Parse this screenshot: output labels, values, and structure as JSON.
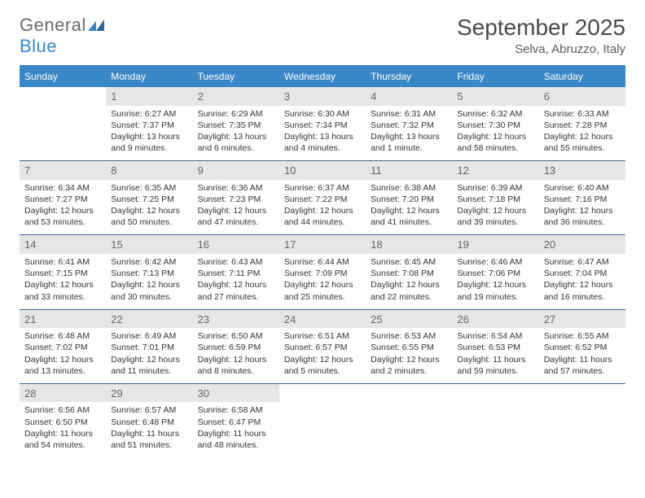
{
  "logo": {
    "part1": "General",
    "part2": "Blue"
  },
  "title": "September 2025",
  "location": "Selva, Abruzzo, Italy",
  "colors": {
    "header_bg": "#3a87c7",
    "header_text": "#ffffff",
    "daynum_bg": "#e6e6e6",
    "daynum_text": "#666666",
    "week_border": "#3a6a9a",
    "body_text": "#333333",
    "logo_gray": "#6a6a6a",
    "logo_blue": "#3a87c7"
  },
  "day_names": [
    "Sunday",
    "Monday",
    "Tuesday",
    "Wednesday",
    "Thursday",
    "Friday",
    "Saturday"
  ],
  "weeks": [
    [
      {
        "n": "",
        "sr": "",
        "ss": "",
        "d1": "",
        "d2": ""
      },
      {
        "n": "1",
        "sr": "Sunrise: 6:27 AM",
        "ss": "Sunset: 7:37 PM",
        "d1": "Daylight: 13 hours",
        "d2": "and 9 minutes."
      },
      {
        "n": "2",
        "sr": "Sunrise: 6:29 AM",
        "ss": "Sunset: 7:35 PM",
        "d1": "Daylight: 13 hours",
        "d2": "and 6 minutes."
      },
      {
        "n": "3",
        "sr": "Sunrise: 6:30 AM",
        "ss": "Sunset: 7:34 PM",
        "d1": "Daylight: 13 hours",
        "d2": "and 4 minutes."
      },
      {
        "n": "4",
        "sr": "Sunrise: 6:31 AM",
        "ss": "Sunset: 7:32 PM",
        "d1": "Daylight: 13 hours",
        "d2": "and 1 minute."
      },
      {
        "n": "5",
        "sr": "Sunrise: 6:32 AM",
        "ss": "Sunset: 7:30 PM",
        "d1": "Daylight: 12 hours",
        "d2": "and 58 minutes."
      },
      {
        "n": "6",
        "sr": "Sunrise: 6:33 AM",
        "ss": "Sunset: 7:28 PM",
        "d1": "Daylight: 12 hours",
        "d2": "and 55 minutes."
      }
    ],
    [
      {
        "n": "7",
        "sr": "Sunrise: 6:34 AM",
        "ss": "Sunset: 7:27 PM",
        "d1": "Daylight: 12 hours",
        "d2": "and 53 minutes."
      },
      {
        "n": "8",
        "sr": "Sunrise: 6:35 AM",
        "ss": "Sunset: 7:25 PM",
        "d1": "Daylight: 12 hours",
        "d2": "and 50 minutes."
      },
      {
        "n": "9",
        "sr": "Sunrise: 6:36 AM",
        "ss": "Sunset: 7:23 PM",
        "d1": "Daylight: 12 hours",
        "d2": "and 47 minutes."
      },
      {
        "n": "10",
        "sr": "Sunrise: 6:37 AM",
        "ss": "Sunset: 7:22 PM",
        "d1": "Daylight: 12 hours",
        "d2": "and 44 minutes."
      },
      {
        "n": "11",
        "sr": "Sunrise: 6:38 AM",
        "ss": "Sunset: 7:20 PM",
        "d1": "Daylight: 12 hours",
        "d2": "and 41 minutes."
      },
      {
        "n": "12",
        "sr": "Sunrise: 6:39 AM",
        "ss": "Sunset: 7:18 PM",
        "d1": "Daylight: 12 hours",
        "d2": "and 39 minutes."
      },
      {
        "n": "13",
        "sr": "Sunrise: 6:40 AM",
        "ss": "Sunset: 7:16 PM",
        "d1": "Daylight: 12 hours",
        "d2": "and 36 minutes."
      }
    ],
    [
      {
        "n": "14",
        "sr": "Sunrise: 6:41 AM",
        "ss": "Sunset: 7:15 PM",
        "d1": "Daylight: 12 hours",
        "d2": "and 33 minutes."
      },
      {
        "n": "15",
        "sr": "Sunrise: 6:42 AM",
        "ss": "Sunset: 7:13 PM",
        "d1": "Daylight: 12 hours",
        "d2": "and 30 minutes."
      },
      {
        "n": "16",
        "sr": "Sunrise: 6:43 AM",
        "ss": "Sunset: 7:11 PM",
        "d1": "Daylight: 12 hours",
        "d2": "and 27 minutes."
      },
      {
        "n": "17",
        "sr": "Sunrise: 6:44 AM",
        "ss": "Sunset: 7:09 PM",
        "d1": "Daylight: 12 hours",
        "d2": "and 25 minutes."
      },
      {
        "n": "18",
        "sr": "Sunrise: 6:45 AM",
        "ss": "Sunset: 7:08 PM",
        "d1": "Daylight: 12 hours",
        "d2": "and 22 minutes."
      },
      {
        "n": "19",
        "sr": "Sunrise: 6:46 AM",
        "ss": "Sunset: 7:06 PM",
        "d1": "Daylight: 12 hours",
        "d2": "and 19 minutes."
      },
      {
        "n": "20",
        "sr": "Sunrise: 6:47 AM",
        "ss": "Sunset: 7:04 PM",
        "d1": "Daylight: 12 hours",
        "d2": "and 16 minutes."
      }
    ],
    [
      {
        "n": "21",
        "sr": "Sunrise: 6:48 AM",
        "ss": "Sunset: 7:02 PM",
        "d1": "Daylight: 12 hours",
        "d2": "and 13 minutes."
      },
      {
        "n": "22",
        "sr": "Sunrise: 6:49 AM",
        "ss": "Sunset: 7:01 PM",
        "d1": "Daylight: 12 hours",
        "d2": "and 11 minutes."
      },
      {
        "n": "23",
        "sr": "Sunrise: 6:50 AM",
        "ss": "Sunset: 6:59 PM",
        "d1": "Daylight: 12 hours",
        "d2": "and 8 minutes."
      },
      {
        "n": "24",
        "sr": "Sunrise: 6:51 AM",
        "ss": "Sunset: 6:57 PM",
        "d1": "Daylight: 12 hours",
        "d2": "and 5 minutes."
      },
      {
        "n": "25",
        "sr": "Sunrise: 6:53 AM",
        "ss": "Sunset: 6:55 PM",
        "d1": "Daylight: 12 hours",
        "d2": "and 2 minutes."
      },
      {
        "n": "26",
        "sr": "Sunrise: 6:54 AM",
        "ss": "Sunset: 6:53 PM",
        "d1": "Daylight: 11 hours",
        "d2": "and 59 minutes."
      },
      {
        "n": "27",
        "sr": "Sunrise: 6:55 AM",
        "ss": "Sunset: 6:52 PM",
        "d1": "Daylight: 11 hours",
        "d2": "and 57 minutes."
      }
    ],
    [
      {
        "n": "28",
        "sr": "Sunrise: 6:56 AM",
        "ss": "Sunset: 6:50 PM",
        "d1": "Daylight: 11 hours",
        "d2": "and 54 minutes."
      },
      {
        "n": "29",
        "sr": "Sunrise: 6:57 AM",
        "ss": "Sunset: 6:48 PM",
        "d1": "Daylight: 11 hours",
        "d2": "and 51 minutes."
      },
      {
        "n": "30",
        "sr": "Sunrise: 6:58 AM",
        "ss": "Sunset: 6:47 PM",
        "d1": "Daylight: 11 hours",
        "d2": "and 48 minutes."
      },
      {
        "n": "",
        "sr": "",
        "ss": "",
        "d1": "",
        "d2": ""
      },
      {
        "n": "",
        "sr": "",
        "ss": "",
        "d1": "",
        "d2": ""
      },
      {
        "n": "",
        "sr": "",
        "ss": "",
        "d1": "",
        "d2": ""
      },
      {
        "n": "",
        "sr": "",
        "ss": "",
        "d1": "",
        "d2": ""
      }
    ]
  ]
}
